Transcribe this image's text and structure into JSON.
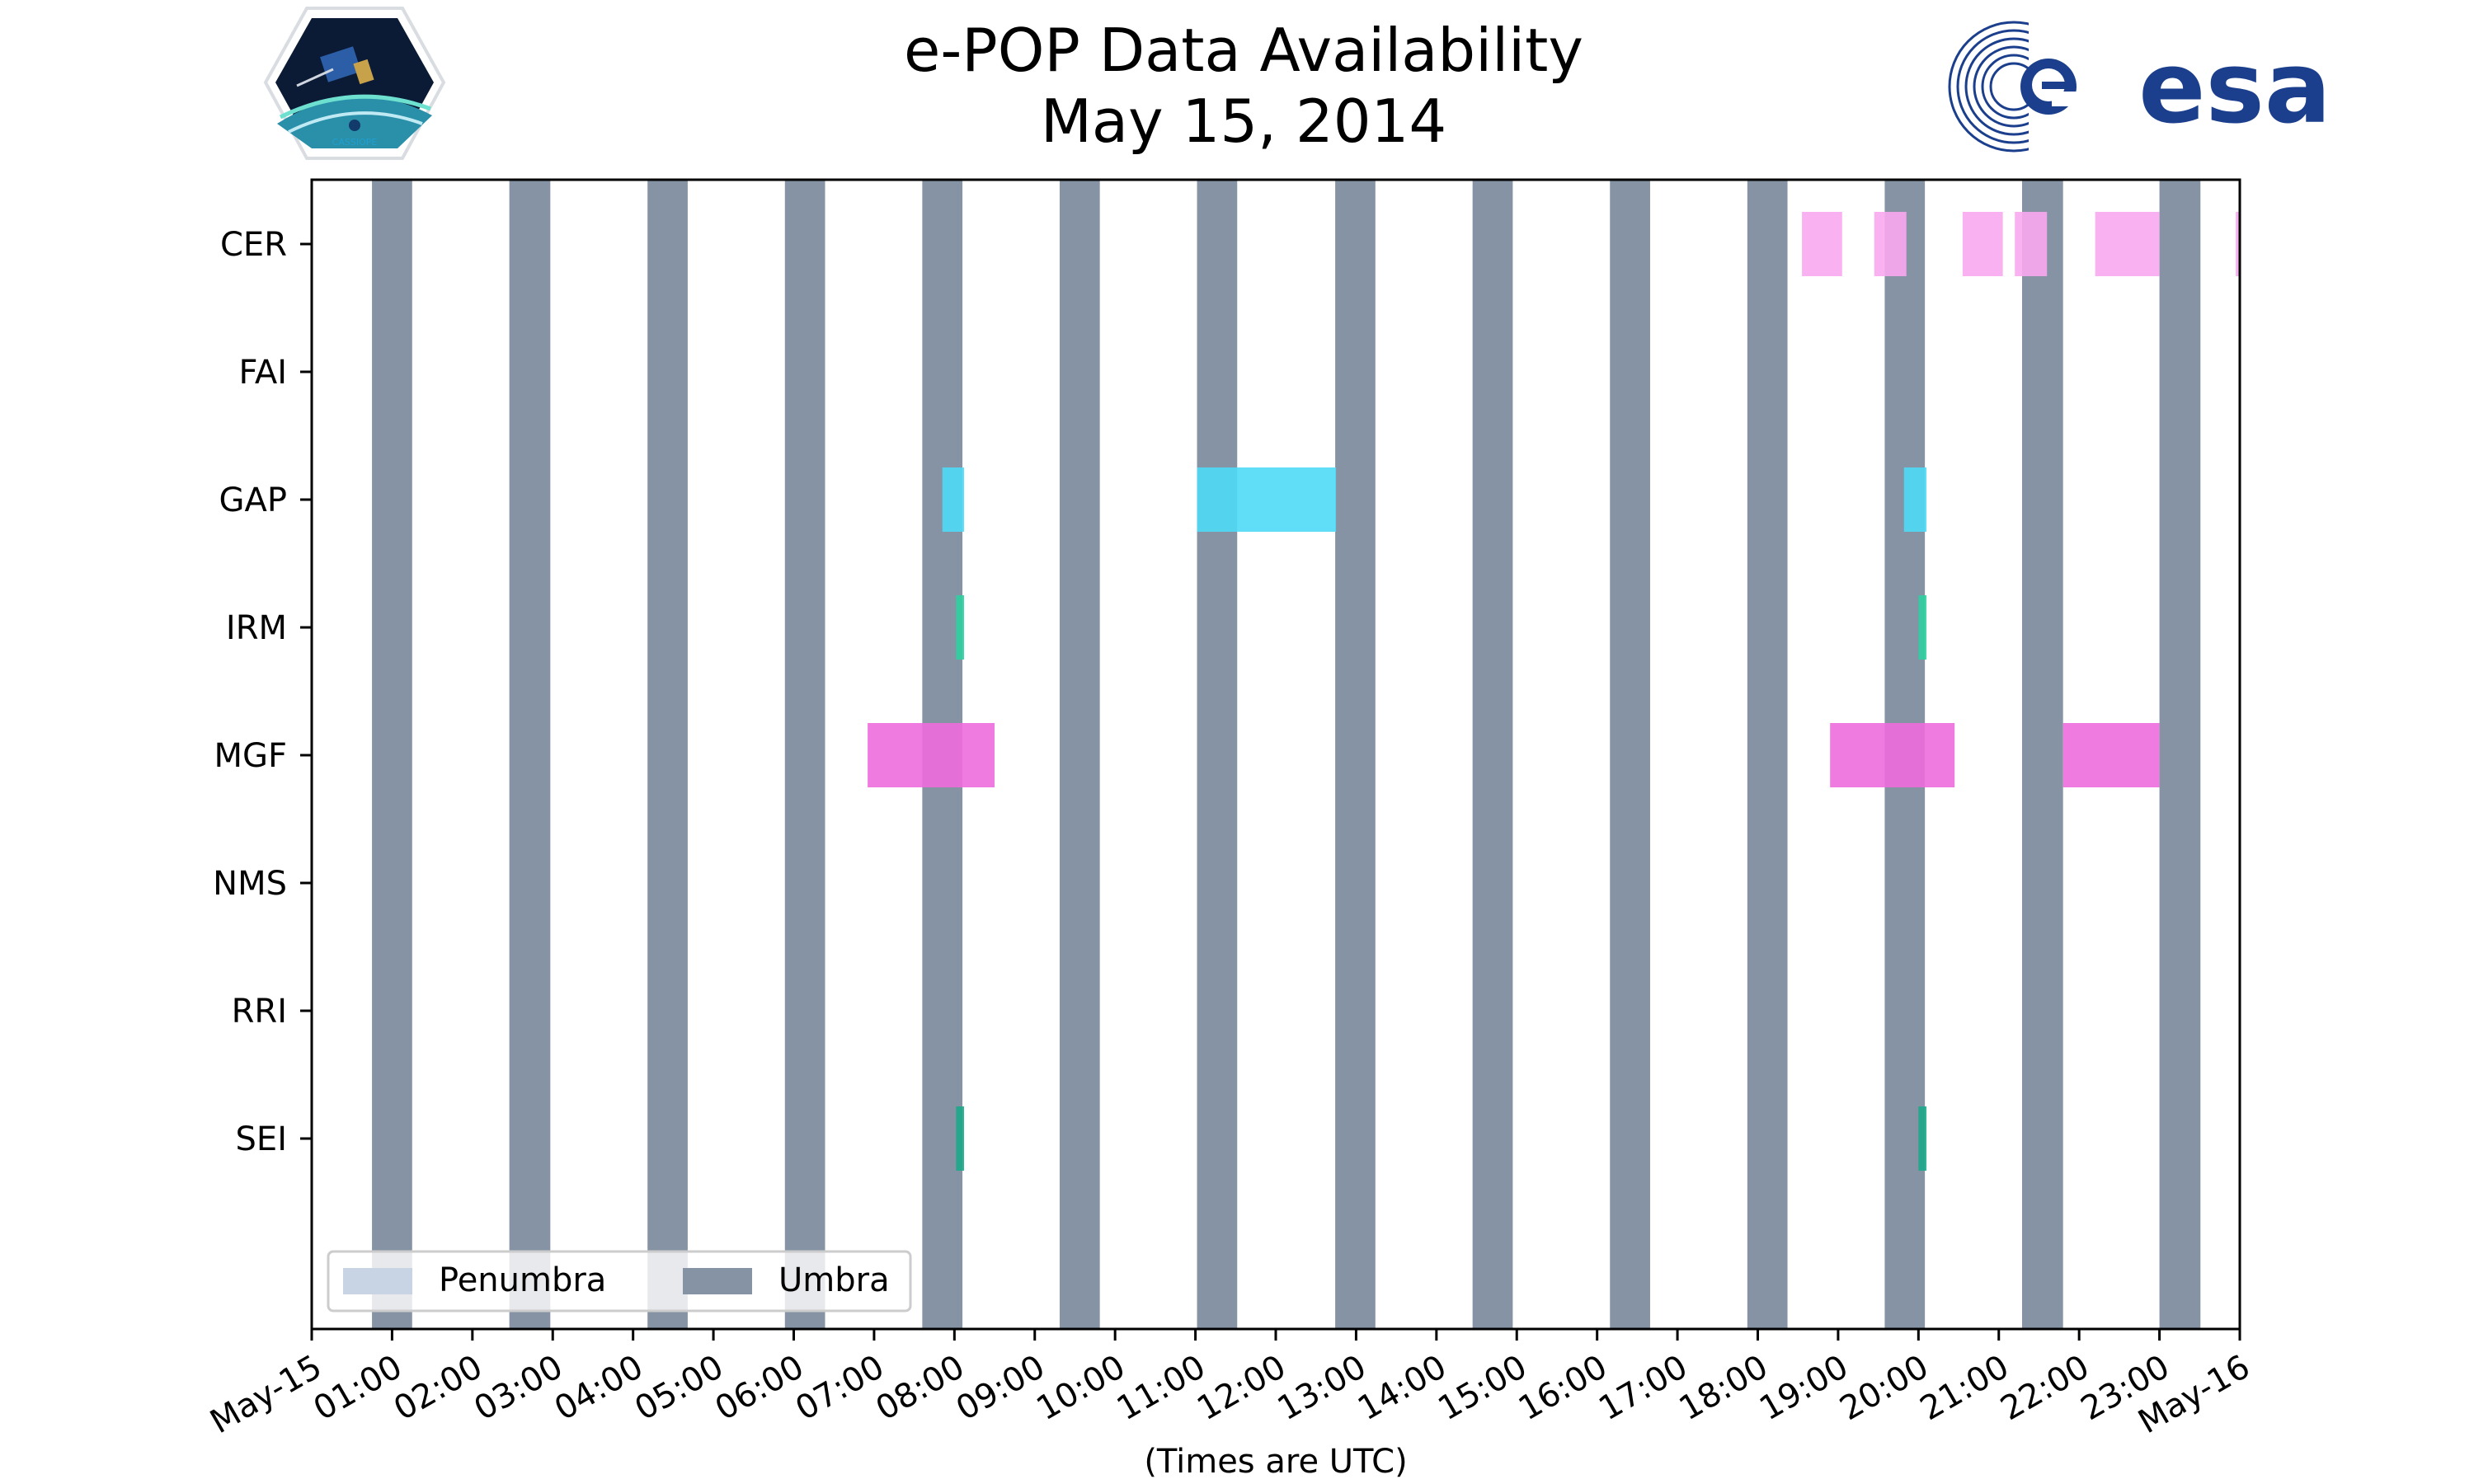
{
  "chart_data": {
    "type": "gantt",
    "title": [
      "e-POP Data Availability",
      "May 15, 2014"
    ],
    "xlabel": "(Times are UTC)",
    "x_range_hours": [
      0,
      24
    ],
    "x_tick_labels": [
      "May-15",
      "01:00",
      "02:00",
      "03:00",
      "04:00",
      "05:00",
      "06:00",
      "07:00",
      "08:00",
      "09:00",
      "10:00",
      "11:00",
      "12:00",
      "13:00",
      "14:00",
      "15:00",
      "16:00",
      "17:00",
      "18:00",
      "19:00",
      "20:00",
      "21:00",
      "22:00",
      "23:00",
      "May-16"
    ],
    "categories": [
      "CER",
      "FAI",
      "GAP",
      "IRM",
      "MGF",
      "NMS",
      "RRI",
      "SEI"
    ],
    "legend": {
      "placement": "lower-left",
      "entries": [
        {
          "label": "Penumbra",
          "color": "#c8d3e3"
        },
        {
          "label": "Umbra",
          "color": "#8593a5"
        }
      ]
    },
    "umbra_intervals": [
      [
        0.75,
        1.25
      ],
      [
        2.46,
        2.97
      ],
      [
        4.18,
        4.68
      ],
      [
        5.89,
        6.39
      ],
      [
        7.6,
        8.1
      ],
      [
        9.31,
        9.81
      ],
      [
        11.02,
        11.52
      ],
      [
        12.74,
        13.24
      ],
      [
        14.45,
        14.95
      ],
      [
        16.16,
        16.66
      ],
      [
        17.87,
        18.37
      ],
      [
        19.58,
        20.08
      ],
      [
        21.29,
        21.8
      ],
      [
        23.0,
        23.51
      ]
    ],
    "series": [
      {
        "name": "CER",
        "color": "#f9a8f0",
        "intervals": [
          [
            18.55,
            19.05
          ],
          [
            19.45,
            19.85
          ],
          [
            20.55,
            21.05
          ],
          [
            21.2,
            21.6
          ],
          [
            22.2,
            23.0
          ],
          [
            23.95,
            24.0
          ]
        ]
      },
      {
        "name": "FAI",
        "color": "#999999",
        "intervals": []
      },
      {
        "name": "GAP",
        "color": "#4fdaf7",
        "intervals": [
          [
            7.85,
            8.12
          ],
          [
            11.02,
            12.75
          ],
          [
            19.82,
            20.1
          ]
        ]
      },
      {
        "name": "IRM",
        "color": "#2fcfa0",
        "intervals": [
          [
            8.02,
            8.12
          ],
          [
            20.0,
            20.1
          ]
        ]
      },
      {
        "name": "MGF",
        "color": "#ee6ddd",
        "intervals": [
          [
            6.92,
            8.5
          ],
          [
            18.9,
            20.45
          ],
          [
            21.8,
            23.0
          ]
        ]
      },
      {
        "name": "NMS",
        "color": "#999999",
        "intervals": []
      },
      {
        "name": "RRI",
        "color": "#999999",
        "intervals": []
      },
      {
        "name": "SEI",
        "color": "#1ca88a",
        "intervals": [
          [
            8.02,
            8.12
          ],
          [
            20.0,
            20.1
          ]
        ]
      }
    ],
    "logos": {
      "left": "CASSIOPE",
      "right": "esa"
    },
    "colors": {
      "axis": "#000000",
      "penumbra": "#c8d3e3",
      "umbra": "#8593a5"
    }
  }
}
